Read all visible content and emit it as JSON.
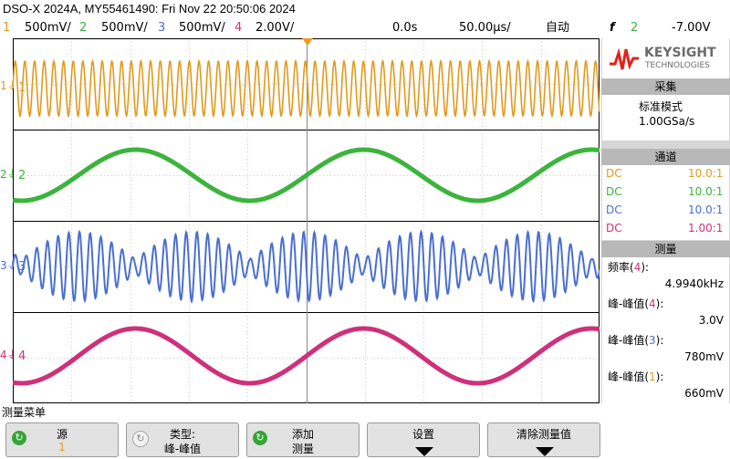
{
  "header": {
    "title": "DSO-X 2024A, MY55461490: Fri Nov 22 20:50:06 2024"
  },
  "status": {
    "channels": [
      {
        "num": "1",
        "scale": "500mV/",
        "color": "#e09a1e"
      },
      {
        "num": "2",
        "scale": "500mV/",
        "color": "#3cb43c"
      },
      {
        "num": "3",
        "scale": "500mV/",
        "color": "#4a6fd0"
      },
      {
        "num": "4",
        "scale": "2.00V/",
        "color": "#d0307a"
      }
    ],
    "time_delay": "0.0s",
    "time_scale": "50.00µs/",
    "trigger_mode": "自动",
    "trigger_symbol": "f",
    "trigger_source": "2",
    "trigger_level": "-7.00V"
  },
  "logo": {
    "brand": "KEYSIGHT",
    "sub": "TECHNOLOGIES"
  },
  "acquire": {
    "header": "采集",
    "mode": "标准模式",
    "rate": "1.00GSa/s"
  },
  "channels_panel": {
    "header": "通道",
    "rows": [
      {
        "coupling": "DC",
        "probe": "10.0:1",
        "color": "#e09a1e"
      },
      {
        "coupling": "DC",
        "probe": "10.0:1",
        "color": "#3cb43c"
      },
      {
        "coupling": "DC",
        "probe": "10.0:1",
        "color": "#4a6fd0"
      },
      {
        "coupling": "DC",
        "probe": "1.00:1",
        "color": "#d0307a"
      }
    ]
  },
  "measure_panel": {
    "header": "测量",
    "items": [
      {
        "label": "频率",
        "src": "4",
        "value": "4.9940kHz",
        "src_color": "#d0307a"
      },
      {
        "label": "峰-峰值",
        "src": "4",
        "value": "3.0V",
        "src_color": "#d0307a"
      },
      {
        "label": "峰-峰值",
        "src": "3",
        "value": "780mV",
        "src_color": "#4a6fd0"
      },
      {
        "label": "峰-峰值",
        "src": "1",
        "value": "660mV",
        "src_color": "#e09a1e"
      }
    ]
  },
  "menu": {
    "label": "测量菜单"
  },
  "softkeys": [
    {
      "l1": "源",
      "l2": "1"
    },
    {
      "l1": "类型:",
      "l2": "峰-峰值"
    },
    {
      "l1": "添加",
      "l2": "测量"
    },
    {
      "l1": "设置",
      "l2": ""
    },
    {
      "l1": "清除测量值",
      "l2": ""
    }
  ],
  "markers": [
    {
      "label": "1",
      "color": "#e09a1e"
    },
    {
      "label": "2",
      "color": "#3cb43c"
    },
    {
      "label": "3",
      "color": "#4a6fd0"
    },
    {
      "label": "4",
      "color": "#d0307a"
    }
  ]
}
